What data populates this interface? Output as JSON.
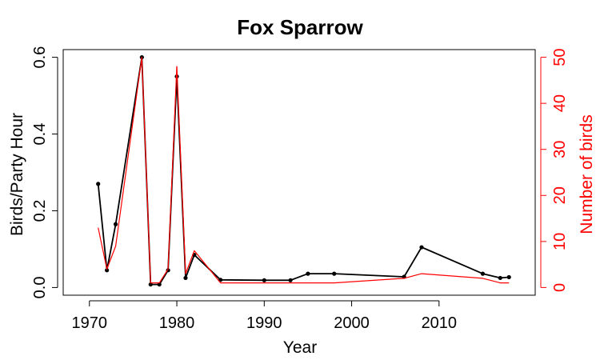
{
  "chart_data": {
    "type": "line",
    "title": "Fox Sparrow",
    "xlabel": "Year",
    "ylabel_left": "Birds/Party Hour",
    "ylabel_right": "Number of birds",
    "xlim": [
      1967,
      2021
    ],
    "x_ticks": [
      1970,
      1980,
      1990,
      2000,
      2010
    ],
    "left_ylim": [
      -0.02,
      0.62
    ],
    "left_ticks": [
      0.0,
      0.2,
      0.4,
      0.6
    ],
    "right_ticks": [
      0,
      10,
      20,
      30,
      40,
      50
    ],
    "grid": false,
    "series": [
      {
        "axis": "left",
        "color": "#000000",
        "marker": "dot",
        "x": [
          1971,
          1972,
          1973,
          1976,
          1977,
          1978,
          1979,
          1980,
          1981,
          1982,
          1985,
          1990,
          1993,
          1995,
          1998,
          2006,
          2008,
          2015,
          2017,
          2018
        ],
        "values": [
          0.27,
          0.045,
          0.165,
          0.6,
          0.008,
          0.008,
          0.045,
          0.55,
          0.025,
          0.085,
          0.02,
          0.019,
          0.019,
          0.036,
          0.036,
          0.028,
          0.105,
          0.036,
          0.025,
          0.027
        ]
      },
      {
        "axis": "right",
        "color": "#ff0000",
        "marker": "none",
        "x": [
          1971,
          1972,
          1973,
          1976,
          1977,
          1978,
          1979,
          1980,
          1981,
          1982,
          1985,
          1990,
          1993,
          1995,
          1998,
          2006,
          2008,
          2015,
          2017,
          2018
        ],
        "values": [
          13,
          4,
          9,
          50,
          1,
          1,
          4,
          48,
          3,
          8,
          1,
          1,
          1,
          1,
          1,
          2,
          3,
          2,
          1,
          1
        ],
        "error_bars": [
          {
            "x": 1980,
            "low": 46,
            "high": 48
          }
        ]
      }
    ]
  }
}
